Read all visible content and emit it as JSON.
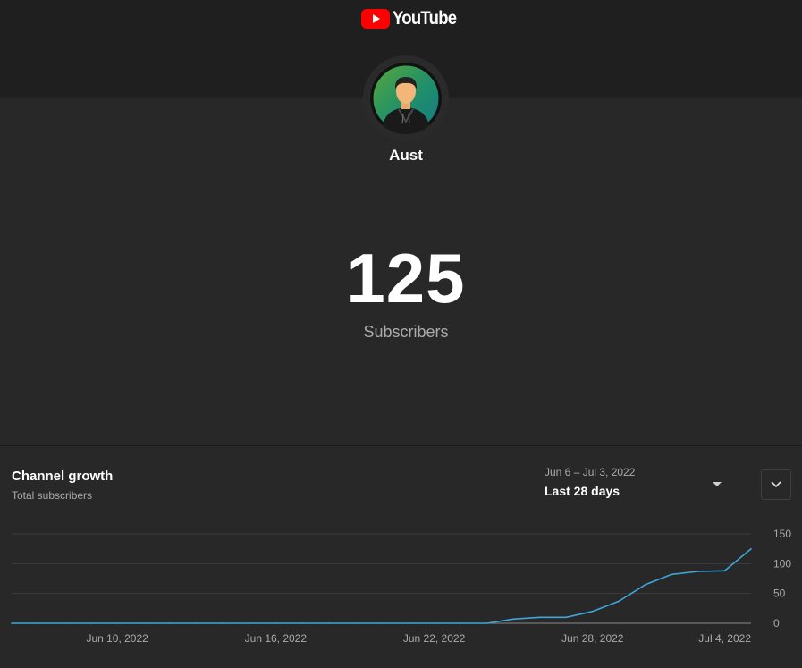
{
  "header": {
    "logo_text": "YouTube",
    "logo_color": "#ff0000"
  },
  "channel": {
    "name": "Aust"
  },
  "stats": {
    "subscriber_count": "125",
    "subscriber_label": "Subscribers"
  },
  "growth": {
    "title": "Channel growth",
    "subtitle": "Total subscribers",
    "date_range": "Jun 6 – Jul 3, 2022",
    "period_label": "Last 28 days"
  },
  "chart_data": {
    "type": "line",
    "title": "Channel growth",
    "ylabel": "Total subscribers",
    "ylim": [
      0,
      150
    ],
    "yticks": [
      0,
      50,
      100,
      150
    ],
    "xlim": [
      0,
      28
    ],
    "x_tick_labels": [
      {
        "x": 4,
        "label": "Jun 10, 2022"
      },
      {
        "x": 10,
        "label": "Jun 16, 2022"
      },
      {
        "x": 16,
        "label": "Jun 22, 2022"
      },
      {
        "x": 22,
        "label": "Jun 28, 2022"
      },
      {
        "x": 28,
        "label": "Jul 4, 2022"
      }
    ],
    "series": [
      {
        "name": "Total subscribers",
        "color": "#3ea6d8",
        "x": [
          0,
          1,
          2,
          3,
          4,
          5,
          6,
          7,
          8,
          9,
          10,
          11,
          12,
          13,
          14,
          15,
          16,
          17,
          18,
          19,
          20,
          21,
          22,
          23,
          24,
          25,
          26,
          27,
          28
        ],
        "values": [
          0,
          0,
          0,
          0,
          0,
          0,
          0,
          0,
          0,
          0,
          0,
          0,
          0,
          0,
          0,
          0,
          0,
          0,
          0,
          7,
          10,
          10,
          20,
          37,
          65,
          82,
          87,
          88,
          125
        ]
      }
    ],
    "grid": true
  }
}
